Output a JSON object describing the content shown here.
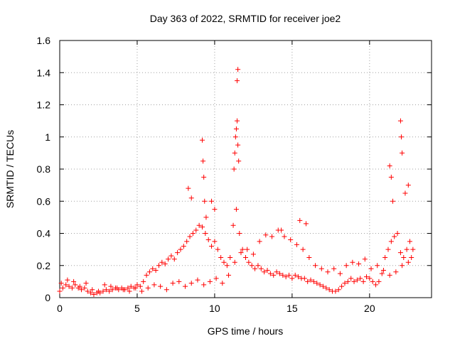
{
  "chart_data": {
    "type": "scatter",
    "title": "Day 363 of 2022, SRMTID for receiver joe2",
    "xlabel": "GPS time / hours",
    "ylabel": "SRMTID / TECUs",
    "xlim": [
      0,
      24
    ],
    "ylim": [
      0,
      1.6
    ],
    "xticks": [
      0,
      5,
      10,
      15,
      20
    ],
    "xtick_labels": [
      "0",
      "5",
      "10",
      "15",
      "20"
    ],
    "yticks": [
      0,
      0.2,
      0.4,
      0.6,
      0.8,
      1.0,
      1.2,
      1.4,
      1.6
    ],
    "ytick_labels": [
      "0",
      "0.2",
      "0.4",
      "0.6",
      "0.8",
      "1",
      "1.2",
      "1.4",
      "1.6"
    ],
    "grid": true,
    "marker": "+",
    "color": "#ff0000",
    "series": [
      {
        "name": "SRMTID",
        "x": [
          0.0,
          0.2,
          0.4,
          0.6,
          0.8,
          1.0,
          1.2,
          1.4,
          1.6,
          1.8,
          2.0,
          2.2,
          2.4,
          2.6,
          2.8,
          3.0,
          3.2,
          3.4,
          3.6,
          3.8,
          4.0,
          4.2,
          4.4,
          4.6,
          4.8,
          5.0,
          5.2,
          5.4,
          5.6,
          5.8,
          6.0,
          6.2,
          6.4,
          6.6,
          6.8,
          7.0,
          7.2,
          7.4,
          7.6,
          7.8,
          8.0,
          8.2,
          8.4,
          8.6,
          8.8,
          9.0,
          9.2,
          9.4,
          9.6,
          9.8,
          10.0,
          10.2,
          10.4,
          10.6,
          10.8,
          11.0,
          11.2,
          11.4,
          11.6,
          11.8,
          12.0,
          12.2,
          12.4,
          12.6,
          12.8,
          13.0,
          13.2,
          13.4,
          13.6,
          13.8,
          14.0,
          14.2,
          14.4,
          14.6,
          14.8,
          15.0,
          15.2,
          15.4,
          15.6,
          15.8,
          16.0,
          16.2,
          16.4,
          16.6,
          16.8,
          17.0,
          17.2,
          17.4,
          17.6,
          17.8,
          18.0,
          18.2,
          18.4,
          18.6,
          18.8,
          19.0,
          19.2,
          19.4,
          19.6,
          19.8,
          20.0,
          20.2,
          20.4,
          20.6,
          20.8,
          21.0,
          21.2,
          21.4,
          21.6,
          21.8,
          22.0,
          22.2,
          22.4,
          22.6,
          22.8,
          0.1,
          0.5,
          0.9,
          1.3,
          1.7,
          2.1,
          2.5,
          2.9,
          3.3,
          3.7,
          4.1,
          4.5,
          4.9,
          5.3,
          5.7,
          6.1,
          6.5,
          6.9,
          7.3,
          7.7,
          8.1,
          8.5,
          8.9,
          9.3,
          9.7,
          10.1,
          10.5,
          10.9,
          11.3,
          11.7,
          12.1,
          12.5,
          12.9,
          13.3,
          13.7,
          14.1,
          14.5,
          14.9,
          15.3,
          15.7,
          16.1,
          16.5,
          16.9,
          17.3,
          17.7,
          18.1,
          18.5,
          18.9,
          19.3,
          19.7,
          20.1,
          20.5,
          20.9,
          21.3,
          21.7,
          22.1,
          22.5,
          22.7,
          9.2,
          9.25,
          9.3,
          9.35,
          9.45,
          11.25,
          11.3,
          11.35,
          11.4,
          11.45,
          11.5,
          11.55,
          11.45,
          11.5,
          22.0,
          22.05,
          22.1,
          21.3,
          21.4,
          21.5,
          22.3,
          22.5,
          14.3,
          15.5,
          15.9,
          8.3,
          8.5,
          9.8,
          10.0
        ],
        "y": [
          0.04,
          0.06,
          0.08,
          0.07,
          0.06,
          0.08,
          0.06,
          0.05,
          0.06,
          0.04,
          0.03,
          0.02,
          0.03,
          0.03,
          0.04,
          0.05,
          0.04,
          0.05,
          0.06,
          0.05,
          0.06,
          0.05,
          0.06,
          0.07,
          0.06,
          0.08,
          0.07,
          0.1,
          0.14,
          0.16,
          0.18,
          0.17,
          0.2,
          0.22,
          0.21,
          0.24,
          0.26,
          0.24,
          0.28,
          0.3,
          0.32,
          0.35,
          0.38,
          0.4,
          0.42,
          0.45,
          0.44,
          0.4,
          0.36,
          0.32,
          0.35,
          0.3,
          0.25,
          0.22,
          0.2,
          0.25,
          0.45,
          0.55,
          0.4,
          0.3,
          0.25,
          0.22,
          0.2,
          0.18,
          0.2,
          0.18,
          0.16,
          0.17,
          0.15,
          0.14,
          0.16,
          0.15,
          0.14,
          0.13,
          0.14,
          0.12,
          0.14,
          0.13,
          0.12,
          0.12,
          0.1,
          0.11,
          0.1,
          0.09,
          0.08,
          0.07,
          0.06,
          0.05,
          0.04,
          0.04,
          0.05,
          0.07,
          0.09,
          0.1,
          0.12,
          0.1,
          0.11,
          0.12,
          0.1,
          0.13,
          0.12,
          0.1,
          0.08,
          0.1,
          0.15,
          0.25,
          0.3,
          0.35,
          0.38,
          0.4,
          0.28,
          0.25,
          0.3,
          0.35,
          0.3,
          0.09,
          0.11,
          0.1,
          0.07,
          0.09,
          0.05,
          0.04,
          0.08,
          0.07,
          0.06,
          0.05,
          0.04,
          0.06,
          0.04,
          0.06,
          0.08,
          0.07,
          0.05,
          0.09,
          0.1,
          0.07,
          0.09,
          0.11,
          0.08,
          0.1,
          0.12,
          0.09,
          0.14,
          0.22,
          0.28,
          0.3,
          0.27,
          0.35,
          0.39,
          0.38,
          0.42,
          0.38,
          0.36,
          0.33,
          0.3,
          0.25,
          0.2,
          0.18,
          0.16,
          0.18,
          0.15,
          0.2,
          0.22,
          0.21,
          0.24,
          0.18,
          0.2,
          0.17,
          0.14,
          0.16,
          0.2,
          0.22,
          0.25,
          0.98,
          0.85,
          0.75,
          0.6,
          0.5,
          0.8,
          0.9,
          1.0,
          1.05,
          1.1,
          0.95,
          0.85,
          1.35,
          1.42,
          1.1,
          1.0,
          0.9,
          0.82,
          0.75,
          0.6,
          0.65,
          0.7,
          0.42,
          0.48,
          0.46,
          0.68,
          0.62,
          0.6,
          0.55
        ]
      }
    ]
  }
}
